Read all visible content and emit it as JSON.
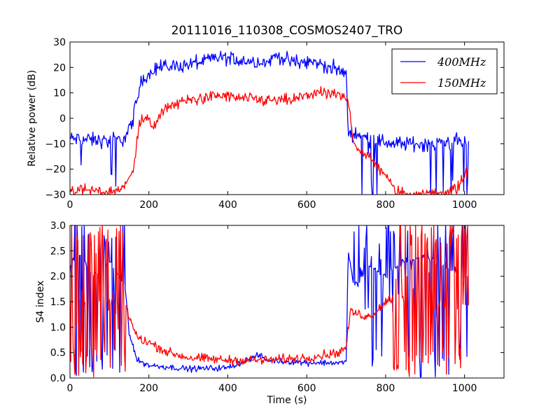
{
  "chart_data": [
    {
      "type": "line",
      "title": "20111016_110308_COSMOS2407_TRO",
      "xlabel": "",
      "ylabel": "Relative power (dB)",
      "xlim": [
        0,
        1100
      ],
      "ylim": [
        -30,
        30
      ],
      "xticks": [
        0,
        200,
        400,
        600,
        800,
        1000
      ],
      "yticks": [
        -30,
        -20,
        -10,
        0,
        10,
        20,
        30
      ],
      "grid": false,
      "legend_position": "top-right",
      "series": [
        {
          "name": "400MHz",
          "color": "#0000ff",
          "noise": 2.5,
          "x": [
            0,
            100,
            140,
            160,
            180,
            200,
            220,
            300,
            380,
            420,
            500,
            525,
            560,
            620,
            680,
            700,
            705,
            720,
            760,
            820,
            900,
            1010
          ],
          "y": [
            -8,
            -9,
            -8,
            0,
            14,
            18,
            20,
            21,
            24,
            23,
            22,
            25,
            22,
            22,
            19,
            17,
            -5,
            -6,
            -8,
            -10,
            -10,
            -9
          ]
        },
        {
          "name": "150MHz",
          "color": "#ff0000",
          "noise": 2,
          "x": [
            0,
            100,
            140,
            160,
            175,
            190,
            210,
            250,
            300,
            380,
            420,
            500,
            560,
            620,
            680,
            705,
            720,
            760,
            800,
            820,
            850,
            900,
            940,
            980,
            1010
          ],
          "y": [
            -28,
            -29,
            -27,
            -20,
            -2,
            0,
            -3,
            5,
            7,
            9,
            8,
            7,
            7,
            10,
            9,
            7,
            -10,
            -16,
            -22,
            -28,
            -30,
            -30,
            -29,
            -28,
            -20
          ]
        }
      ]
    },
    {
      "type": "line",
      "title": "",
      "xlabel": "Time (s)",
      "ylabel": "S4 index",
      "xlim": [
        0,
        1100
      ],
      "ylim": [
        0,
        3
      ],
      "xticks": [
        0,
        200,
        400,
        600,
        800,
        1000
      ],
      "yticks": [
        0.0,
        0.5,
        1.0,
        1.5,
        2.0,
        2.5,
        3.0
      ],
      "grid": false,
      "series": [
        {
          "name": "400MHz",
          "color": "#0000ff",
          "noise": 0.05,
          "x": [
            0,
            20,
            60,
            100,
            140,
            150,
            170,
            200,
            300,
            400,
            480,
            500,
            600,
            700,
            705,
            720,
            760,
            800,
            850,
            900,
            950,
            1010
          ],
          "y": [
            2.2,
            2.5,
            2.0,
            2.3,
            1.8,
            0.9,
            0.35,
            0.25,
            0.18,
            0.2,
            0.45,
            0.35,
            0.3,
            0.3,
            2.5,
            1.8,
            2.2,
            2.0,
            2.3,
            2.4,
            2.2,
            2.0
          ],
          "spike_regions": [
            [
              0,
              140,
              0.55
            ],
            [
              705,
              1010,
              0.45
            ]
          ]
        },
        {
          "name": "150MHz",
          "color": "#ff0000",
          "noise": 0.08,
          "x": [
            0,
            60,
            140,
            150,
            170,
            200,
            250,
            300,
            400,
            500,
            600,
            680,
            700,
            710,
            760,
            800,
            820,
            900,
            1010
          ],
          "y": [
            1.5,
            1.5,
            1.5,
            1.2,
            0.8,
            0.7,
            0.5,
            0.4,
            0.35,
            0.35,
            0.4,
            0.5,
            0.6,
            1.3,
            1.2,
            1.5,
            1.6,
            1.5,
            1.4
          ],
          "spike_regions": [
            [
              0,
              140,
              0.8
            ],
            [
              820,
              1010,
              0.85
            ]
          ]
        }
      ]
    }
  ]
}
